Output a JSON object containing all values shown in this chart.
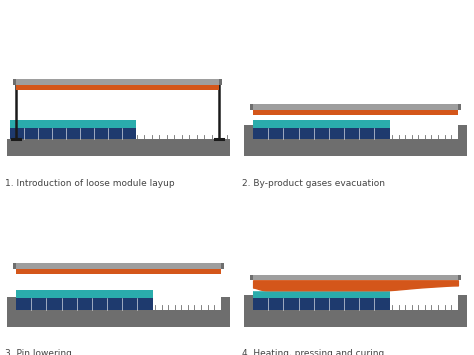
{
  "background_color": "#ffffff",
  "labels": [
    "1. Introduction of loose module layup",
    "2. By-product gases evacuation",
    "3. Pin lowering",
    "4. Heating, pressing and curing"
  ],
  "colors": {
    "gray_dark": "#6e6e6e",
    "gray_medium": "#9e9e9e",
    "gray_light": "#b0b0b0",
    "orange": "#d4561a",
    "teal": "#2aacac",
    "navy": "#1e3a6e",
    "black": "#1a1a1a",
    "white": "#ffffff"
  },
  "label_fontsize": 6.5,
  "label_color": "#444444"
}
